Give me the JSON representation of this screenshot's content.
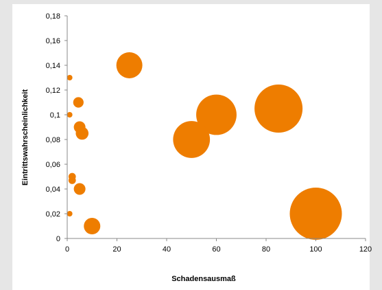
{
  "chart_data": {
    "type": "bubble",
    "xlabel": "Schadensausmaß",
    "ylabel": "Eintrittswahrscheinlichkeit",
    "xlim": [
      0,
      120
    ],
    "ylim": [
      0,
      0.18
    ],
    "x_ticks": [
      "0",
      "20",
      "40",
      "60",
      "80",
      "100",
      "120"
    ],
    "y_ticks": [
      "0",
      "0,02",
      "0,04",
      "0,06",
      "0,08",
      "0,1",
      "0,12",
      "0,14",
      "0,16",
      "0,18"
    ],
    "color": "#ee7d00",
    "grid": false,
    "legend": "none",
    "points": [
      {
        "x": 1,
        "y": 0.13,
        "size": 1
      },
      {
        "x": 1,
        "y": 0.1,
        "size": 1
      },
      {
        "x": 1,
        "y": 0.02,
        "size": 1
      },
      {
        "x": 2,
        "y": 0.05,
        "size": 2
      },
      {
        "x": 2,
        "y": 0.047,
        "size": 2
      },
      {
        "x": 4.5,
        "y": 0.11,
        "size": 4
      },
      {
        "x": 5,
        "y": 0.09,
        "size": 5
      },
      {
        "x": 5,
        "y": 0.04,
        "size": 5
      },
      {
        "x": 6,
        "y": 0.085,
        "size": 6
      },
      {
        "x": 10,
        "y": 0.01,
        "size": 10
      },
      {
        "x": 25,
        "y": 0.14,
        "size": 25
      },
      {
        "x": 50,
        "y": 0.08,
        "size": 50
      },
      {
        "x": 60,
        "y": 0.1,
        "size": 60
      },
      {
        "x": 85,
        "y": 0.105,
        "size": 85
      },
      {
        "x": 100,
        "y": 0.02,
        "size": 100
      }
    ]
  }
}
